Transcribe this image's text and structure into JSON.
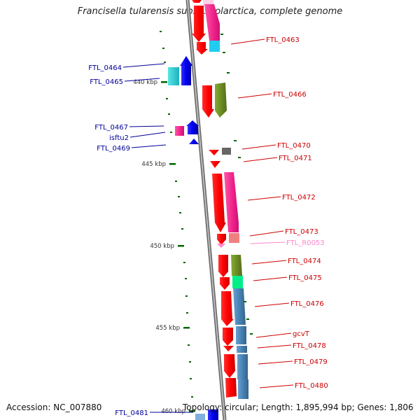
{
  "title": "Francisella tularensis subsp. holarctica, complete genome",
  "footer": {
    "accession": "Accession: NC_007880",
    "topology": "Topology: circular; Length: 1,895,994 bp; Genes: 1,806"
  },
  "scale_labels": [
    "440 kbp",
    "445 kbp",
    "450 kbp",
    "455 kbp",
    "460 kbp"
  ],
  "left_genes": [
    "FTL_0464",
    "FTL_0465",
    "FTL_0467",
    "isftu2",
    "FTL_0469",
    "FTL_0481"
  ],
  "right_genes": [
    "FTL_0463",
    "FTL_0466",
    "FTL_0470",
    "FTL_0471",
    "FTL_0472",
    "FTL_0473",
    "FTL_R0053",
    "FTL_0474",
    "FTL_0475",
    "FTL_0476",
    "gcvT",
    "FTL_0478",
    "FTL_0479",
    "FTL_0480"
  ],
  "colors": {
    "backbone": "#888888",
    "forward_strand": "#ff0000",
    "reverse_strand": "#0000ee",
    "right_label": "#cc0000",
    "left_label": "#000099",
    "rrna_label": "#ff88cc",
    "tick": "#006600"
  }
}
